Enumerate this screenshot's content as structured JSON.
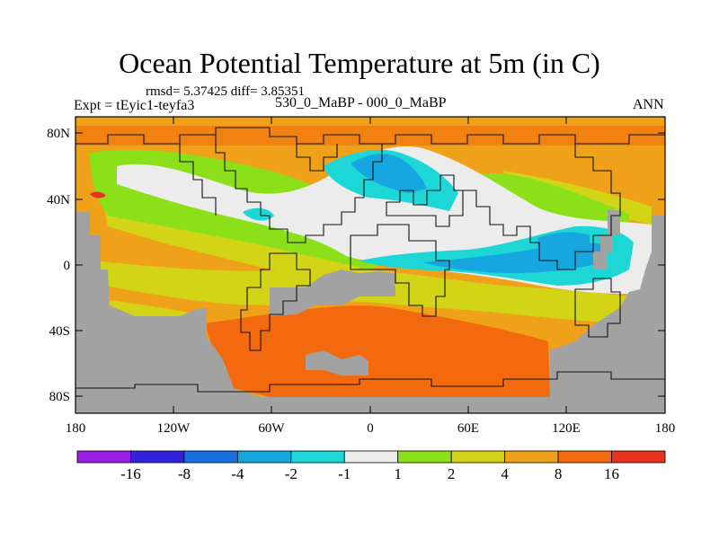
{
  "title": "Ocean Potential Temperature at 5m (in C)",
  "stats": "rmsd= 5.37425 diff= 3.85351",
  "expt_label": "Expt = tEyic1-teyfa3",
  "subtitle": "530_0_MaBP - 000_0_MaBP",
  "season": "ANN",
  "lat_labels": [
    "80N",
    "40N",
    "0",
    "40S",
    "80S"
  ],
  "lon_labels": [
    "180",
    "120W",
    "60W",
    "0",
    "60E",
    "120E",
    "180"
  ],
  "legend": {
    "colors": [
      "#9a1ee6",
      "#3322dd",
      "#1670e0",
      "#16a7e0",
      "#1dd6d6",
      "#ececec",
      "#8ce01a",
      "#d4d417",
      "#f0a11a",
      "#f26a0d",
      "#e8321e"
    ],
    "labels": [
      "-16",
      "-8",
      "-4",
      "-2",
      "-1",
      "1",
      "2",
      "4",
      "8",
      "16"
    ]
  },
  "colors": {
    "land": "#a2a2a2",
    "white": "#ececec",
    "cyan": "#1dd6d6",
    "lightblue": "#16a7e0",
    "green": "#8ce01a",
    "yellow": "#d4d417",
    "orange": "#f0a11a",
    "darkorange": "#f26a0d",
    "red": "#e8321e"
  }
}
